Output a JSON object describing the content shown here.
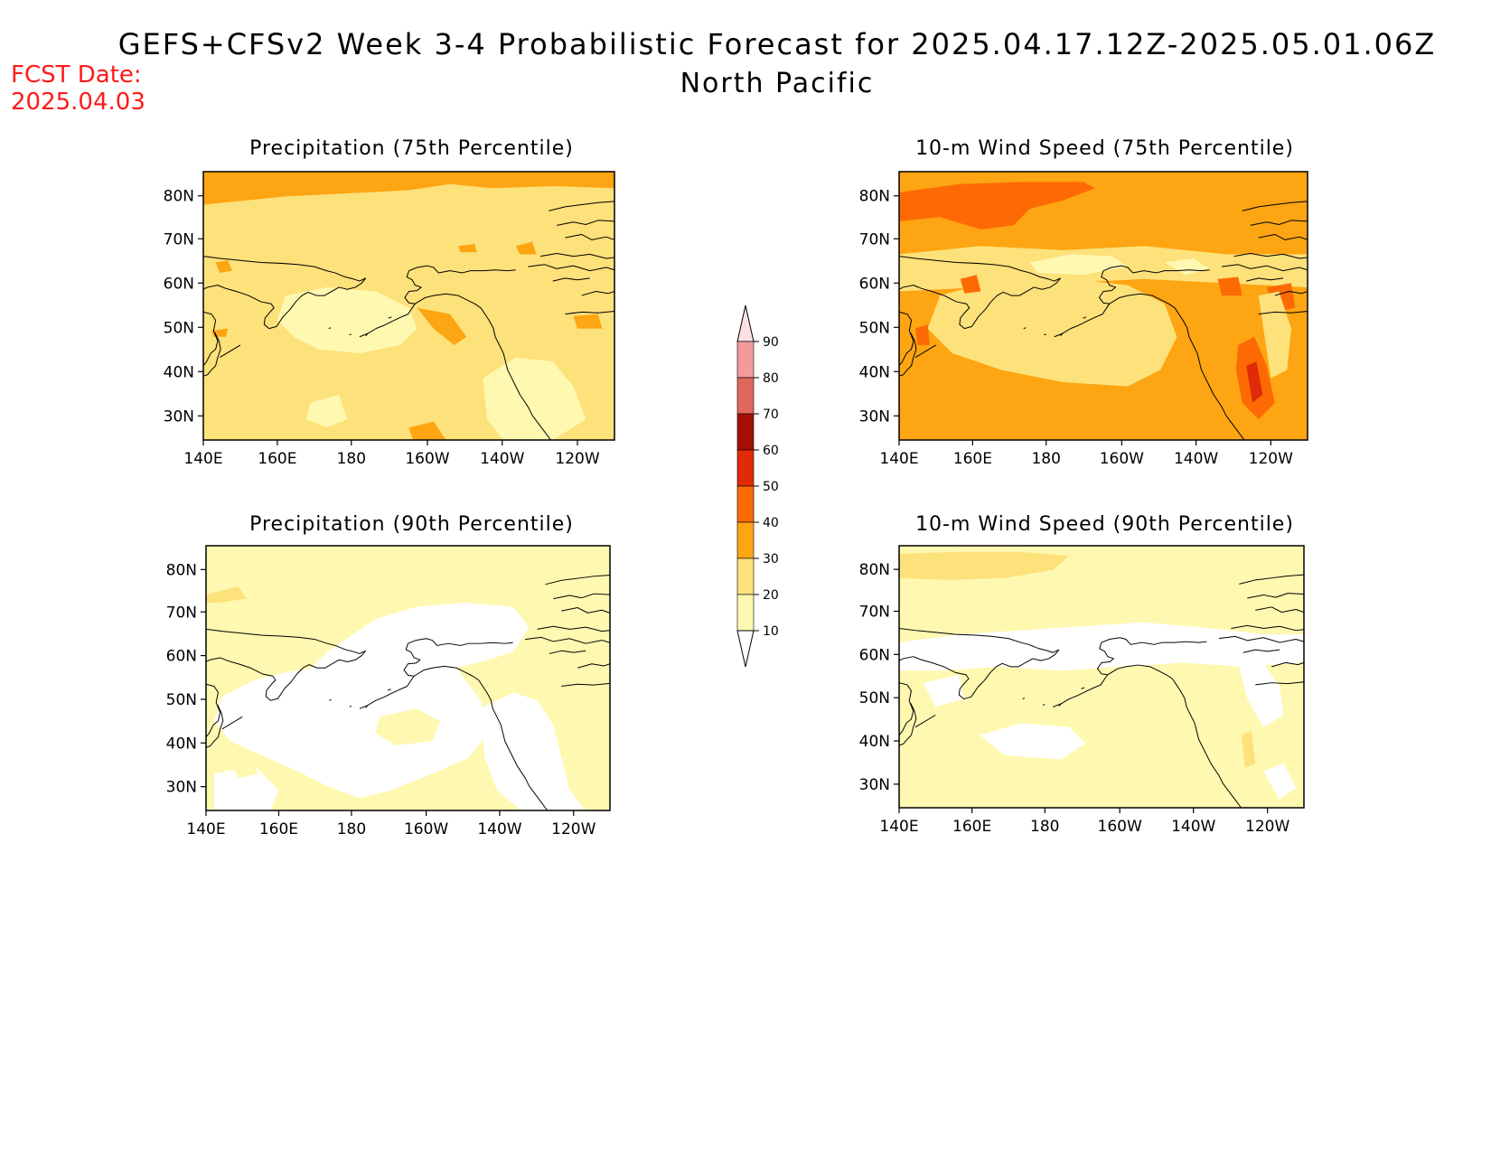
{
  "header": {
    "title": "GEFS+CFSv2 Week 3-4 Probabilistic Forecast for 2025.04.17.12Z-2025.05.01.06Z",
    "subtitle": "North Pacific",
    "fcst_label": "FCST Date:",
    "fcst_date": "2025.04.03"
  },
  "axes": {
    "lat_labels": [
      "80N",
      "70N",
      "60N",
      "50N",
      "40N",
      "30N"
    ],
    "lon_labels": [
      "140E",
      "160E",
      "180",
      "160W",
      "140W",
      "120W"
    ]
  },
  "panels": [
    {
      "title": "Precipitation (75th Percentile)"
    },
    {
      "title": "10-m Wind Speed (75th Percentile)"
    },
    {
      "title": "Precipitation (90th Percentile)"
    },
    {
      "title": "10-m Wind Speed (90th Percentile)"
    }
  ],
  "colorbar": {
    "ticks": [
      "90",
      "80",
      "70",
      "60",
      "50",
      "40",
      "30",
      "20",
      "10"
    ],
    "colors": {
      "10-20": "#fff8b0",
      "20-30": "#fde17a",
      "30-40": "#fda512",
      "40-50": "#fd6a04",
      "50-60": "#e02a08",
      "60-70": "#a50f05",
      "70-80": "#e0675e",
      "80-90": "#f29b9b",
      "90+": "#fde1e1"
    }
  }
}
